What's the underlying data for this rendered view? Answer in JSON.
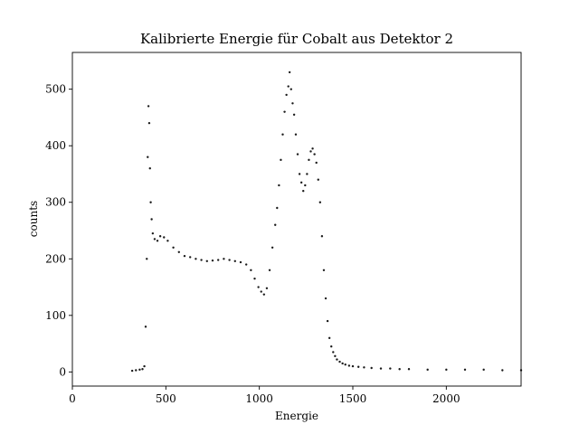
{
  "chart_data": {
    "type": "scatter",
    "title": "Kalibrierte Energie für Cobalt aus Detektor 2",
    "xlabel": "Energie",
    "ylabel": "counts",
    "xlim": [
      0,
      2400
    ],
    "ylim": [
      -25,
      565
    ],
    "xticks": [
      0,
      500,
      1000,
      1500,
      2000
    ],
    "yticks": [
      0,
      100,
      200,
      300,
      400,
      500
    ],
    "grid": false,
    "marker_color": "#1a1a1a",
    "series": [
      {
        "x": [
          320,
          340,
          360,
          375,
          385,
          392,
          398,
          403,
          407,
          411,
          415,
          419,
          424,
          430,
          440,
          455,
          470,
          490,
          510,
          540,
          570,
          600,
          630,
          660,
          690,
          720,
          750,
          780,
          810,
          840,
          870,
          900,
          930,
          955,
          975,
          995,
          1010,
          1025,
          1040,
          1055,
          1070,
          1085,
          1095,
          1105,
          1115,
          1125,
          1135,
          1145,
          1155,
          1162,
          1170,
          1178,
          1186,
          1195,
          1205,
          1215,
          1225,
          1235,
          1245,
          1255,
          1265,
          1275,
          1285,
          1295,
          1305,
          1315,
          1325,
          1335,
          1345,
          1355,
          1365,
          1375,
          1385,
          1395,
          1405,
          1415,
          1430,
          1445,
          1460,
          1480,
          1500,
          1530,
          1560,
          1600,
          1650,
          1700,
          1750,
          1800,
          1900,
          2000,
          2100,
          2200,
          2300,
          2400
        ],
        "y": [
          2,
          3,
          4,
          5,
          10,
          80,
          200,
          380,
          470,
          440,
          360,
          300,
          270,
          245,
          235,
          232,
          240,
          238,
          232,
          220,
          212,
          205,
          203,
          200,
          198,
          196,
          197,
          198,
          200,
          198,
          196,
          194,
          190,
          180,
          165,
          150,
          142,
          137,
          148,
          180,
          220,
          260,
          290,
          330,
          375,
          420,
          460,
          490,
          505,
          530,
          500,
          475,
          455,
          420,
          385,
          350,
          335,
          320,
          330,
          350,
          375,
          390,
          395,
          385,
          370,
          340,
          300,
          240,
          180,
          130,
          90,
          60,
          45,
          35,
          28,
          22,
          18,
          15,
          13,
          11,
          10,
          9,
          8,
          7,
          6,
          6,
          5,
          5,
          4,
          4,
          4,
          4,
          3,
          3
        ]
      }
    ]
  }
}
